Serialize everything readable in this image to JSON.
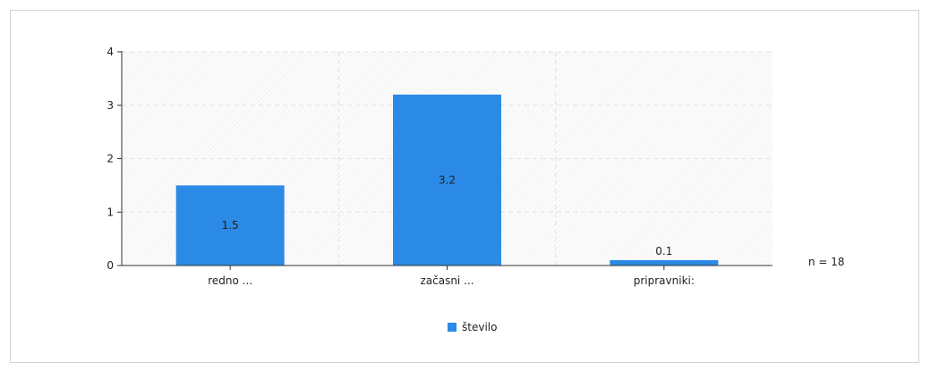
{
  "chart_data": {
    "type": "bar",
    "categories": [
      "redno ...",
      "začasni ...",
      "pripravniki:"
    ],
    "series": [
      {
        "name": "število",
        "values": [
          1.5,
          3.2,
          0.1
        ],
        "color": "#2b8ae5"
      }
    ],
    "data_labels": [
      "1.5",
      "3.2",
      "0.1"
    ],
    "ylim": [
      0,
      4
    ],
    "yticks": [
      0,
      1,
      2,
      3,
      4
    ],
    "grid": true,
    "legend": "bottom-center",
    "note": "n = 18",
    "title": "",
    "xlabel": "",
    "ylabel": ""
  }
}
